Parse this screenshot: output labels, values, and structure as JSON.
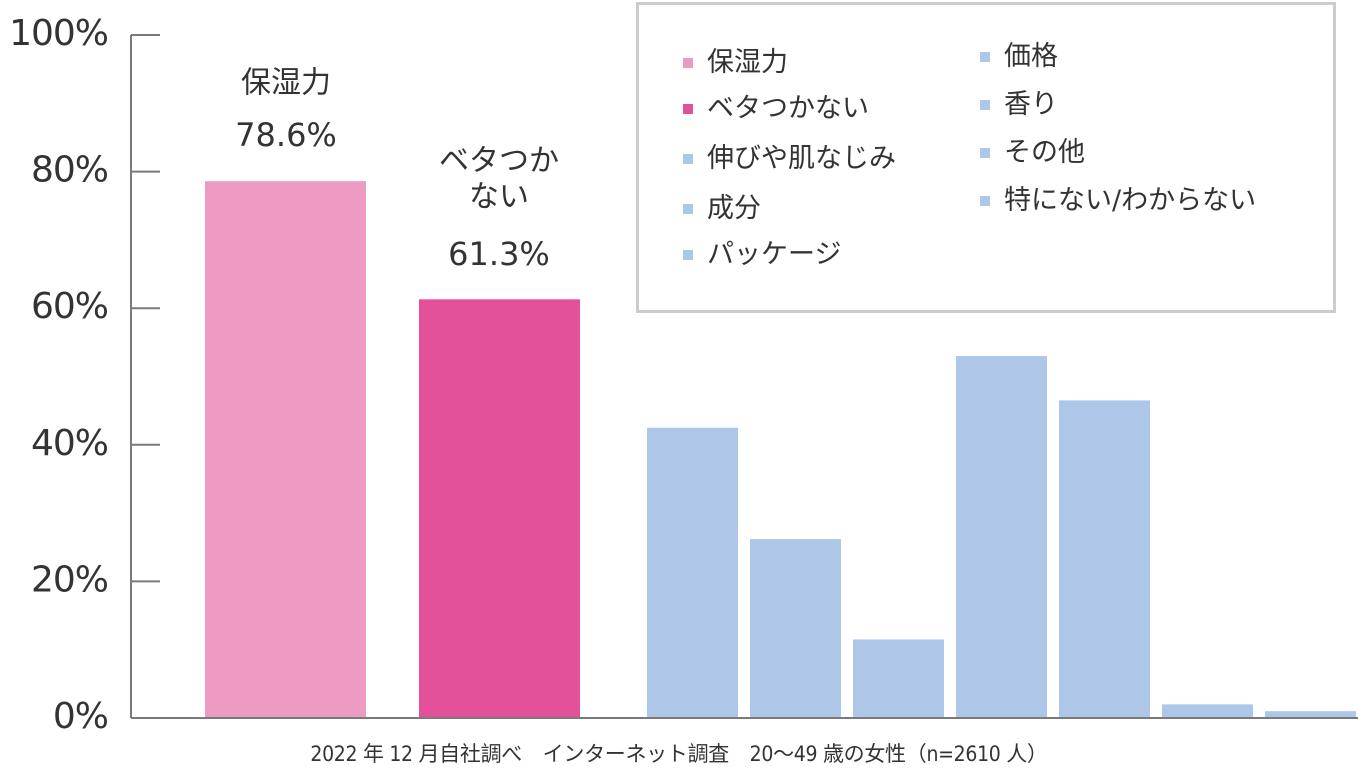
{
  "chart_data": {
    "type": "bar",
    "ylim": [
      0,
      100
    ],
    "yticks": [
      "0%",
      "20%",
      "40%",
      "60%",
      "80%",
      "100%"
    ],
    "grid": false,
    "legend_placement": "top-right",
    "categories": [
      "保湿力",
      "ベタつかない",
      "伸びや肌なじみ",
      "成分",
      "パッケージ",
      "価格",
      "香り",
      "その他",
      "特にない/わからない"
    ],
    "values": [
      78.6,
      61.3,
      42.5,
      26.2,
      11.5,
      53.0,
      46.5,
      2.0,
      1.0
    ],
    "colors": [
      "#ee9bc3",
      "#e5509a",
      "#aec7e8",
      "#aec7e8",
      "#aec7e8",
      "#aec7e8",
      "#aec7e8",
      "#aec7e8",
      "#aec7e8"
    ],
    "annotations": [
      {
        "lines": [
          "保湿力"
        ],
        "value_label": "78.6%"
      },
      {
        "lines": [
          "ベタつか",
          "ない"
        ],
        "value_label": "61.3%"
      }
    ],
    "legend": [
      {
        "label": "保湿力",
        "color": "#ee9bc3"
      },
      {
        "label": "ベタつかない",
        "color": "#e5509a"
      },
      {
        "label": "伸びや肌なじみ",
        "color": "#aec7e8"
      },
      {
        "label": "成分",
        "color": "#aec7e8"
      },
      {
        "label": "パッケージ",
        "color": "#aec7e8"
      },
      {
        "label": "価格",
        "color": "#aec7e8"
      },
      {
        "label": "香り",
        "color": "#aec7e8"
      },
      {
        "label": "その他",
        "color": "#aec7e8"
      },
      {
        "label": "特にない/わからない",
        "color": "#aec7e8"
      }
    ],
    "footnote": "2022 年 12 月自社調べ　インターネット調査　20〜49 歳の女性（n=2610 人）"
  }
}
